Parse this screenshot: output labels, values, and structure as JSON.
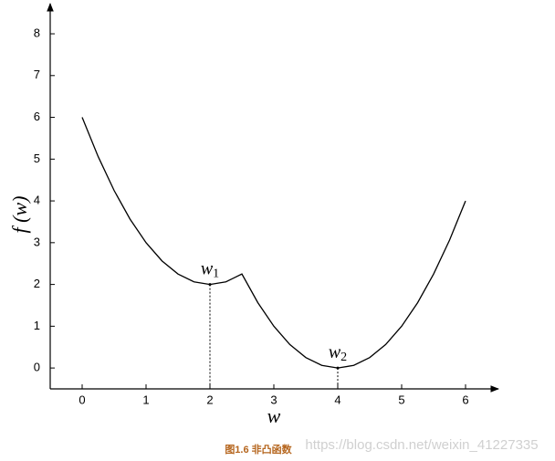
{
  "chart_data": {
    "type": "line",
    "x_label": "w",
    "y_label": "f (w)",
    "caption": "图1.6 非凸函数",
    "watermark": "https://blog.csdn.net/weixin_41227335",
    "x": [
      0,
      0.25,
      0.5,
      0.75,
      1,
      1.25,
      1.5,
      1.75,
      2,
      2.25,
      2.5,
      2.75,
      3,
      3.25,
      3.5,
      3.75,
      4,
      4.25,
      4.5,
      4.75,
      5,
      5.25,
      5.5,
      5.75,
      6
    ],
    "values": [
      6,
      5.0625,
      4.25,
      3.5625,
      3,
      2.5625,
      2.25,
      2.0625,
      2,
      2.0625,
      2.25,
      1.5625,
      1,
      0.5625,
      0.25,
      0.0625,
      0,
      0.0625,
      0.25,
      0.5625,
      1,
      1.5625,
      2.25,
      3.0625,
      4
    ],
    "color": "#000000",
    "xlim": [
      -0.5,
      6.5
    ],
    "ylim": [
      -0.5,
      8.7
    ],
    "xticks": [
      0,
      1,
      2,
      3,
      4,
      5,
      6
    ],
    "yticks": [
      0,
      1,
      2,
      3,
      4,
      5,
      6,
      7,
      8
    ],
    "annotations": [
      {
        "text": "w",
        "sub": "1",
        "x": 2,
        "y": 2
      },
      {
        "text": "w",
        "sub": "2",
        "x": 4,
        "y": 0
      }
    ]
  }
}
